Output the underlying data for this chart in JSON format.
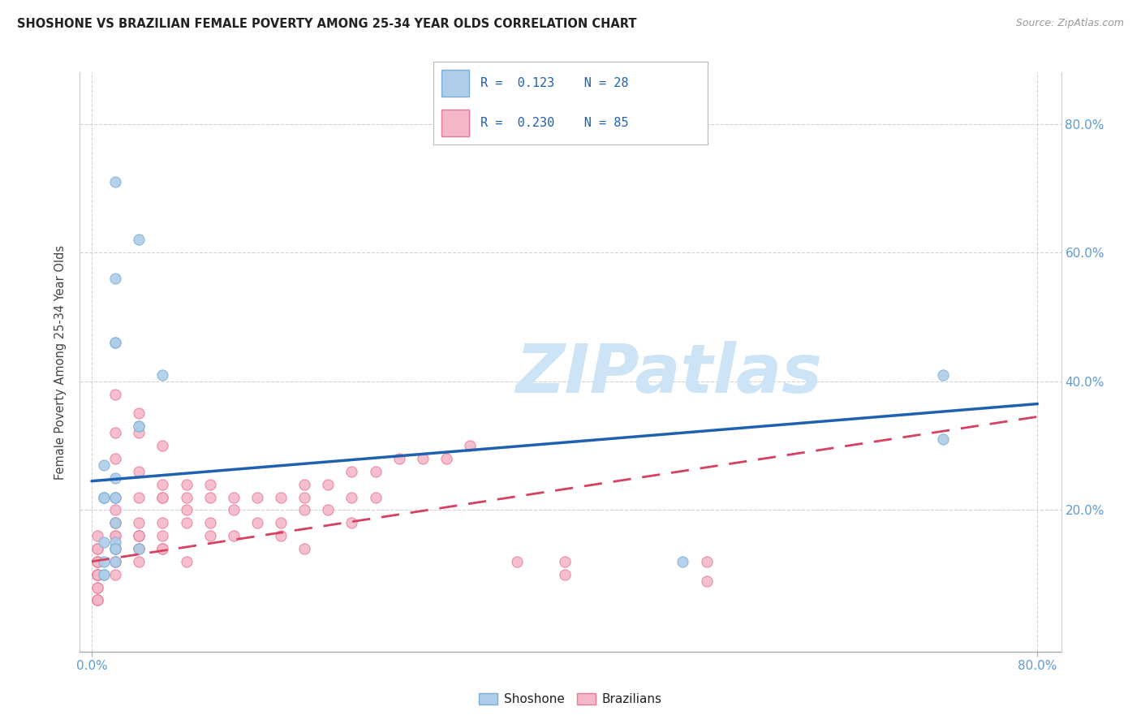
{
  "title": "SHOSHONE VS BRAZILIAN FEMALE POVERTY AMONG 25-34 YEAR OLDS CORRELATION CHART",
  "source": "Source: ZipAtlas.com",
  "ylabel": "Female Poverty Among 25-34 Year Olds",
  "xlim": [
    -0.01,
    0.82
  ],
  "ylim": [
    -0.02,
    0.88
  ],
  "xticks": [
    0.0,
    0.8
  ],
  "yticks": [
    0.2,
    0.4,
    0.6,
    0.8
  ],
  "xtick_labels": [
    "0.0%",
    "80.0%"
  ],
  "ytick_labels": [
    "20.0%",
    "40.0%",
    "60.0%",
    "80.0%"
  ],
  "shoshone_R": "0.123",
  "shoshone_N": "28",
  "brazilian_R": "0.230",
  "brazilian_N": "85",
  "shoshone_color": "#aecde8",
  "brazilian_color": "#f4b8c8",
  "shoshone_edge": "#7aaed6",
  "brazilian_edge": "#e87898",
  "trend_blue": "#2060b0",
  "trend_pink": "#d84060",
  "watermark_text": "ZIPatlas",
  "watermark_color": "#cce4f5",
  "legend_items": [
    {
      "color": "#aecde8",
      "edge": "#7aaed6",
      "R": "0.123",
      "N": "28"
    },
    {
      "color": "#f4b8c8",
      "edge": "#e87898",
      "R": "0.230",
      "N": "85"
    }
  ],
  "bottom_legend": [
    "Shoshone",
    "Brazilians"
  ],
  "shoshone_x": [
    0.02,
    0.02,
    0.04,
    0.02,
    0.02,
    0.04,
    0.04,
    0.06,
    0.01,
    0.01,
    0.01,
    0.01,
    0.02,
    0.02,
    0.02,
    0.02,
    0.01,
    0.01,
    0.02,
    0.04,
    0.02,
    0.02,
    0.01,
    0.01,
    0.72,
    0.72,
    0.5,
    0.02
  ],
  "shoshone_y": [
    0.71,
    0.56,
    0.62,
    0.46,
    0.46,
    0.33,
    0.33,
    0.41,
    0.27,
    0.22,
    0.22,
    0.22,
    0.22,
    0.22,
    0.18,
    0.15,
    0.15,
    0.12,
    0.12,
    0.14,
    0.14,
    0.14,
    0.1,
    0.1,
    0.41,
    0.31,
    0.12,
    0.25
  ],
  "brazilian_x": [
    0.005,
    0.005,
    0.005,
    0.005,
    0.005,
    0.005,
    0.005,
    0.005,
    0.005,
    0.005,
    0.005,
    0.005,
    0.005,
    0.005,
    0.005,
    0.02,
    0.02,
    0.02,
    0.02,
    0.02,
    0.02,
    0.02,
    0.02,
    0.02,
    0.02,
    0.02,
    0.02,
    0.02,
    0.02,
    0.04,
    0.04,
    0.04,
    0.04,
    0.04,
    0.04,
    0.04,
    0.04,
    0.04,
    0.04,
    0.04,
    0.06,
    0.06,
    0.06,
    0.06,
    0.06,
    0.06,
    0.06,
    0.06,
    0.08,
    0.08,
    0.08,
    0.08,
    0.08,
    0.1,
    0.1,
    0.1,
    0.1,
    0.12,
    0.12,
    0.12,
    0.14,
    0.14,
    0.16,
    0.16,
    0.16,
    0.18,
    0.18,
    0.18,
    0.18,
    0.2,
    0.2,
    0.22,
    0.22,
    0.22,
    0.24,
    0.24,
    0.26,
    0.28,
    0.3,
    0.32,
    0.36,
    0.4,
    0.4,
    0.52,
    0.52
  ],
  "brazilian_y": [
    0.16,
    0.14,
    0.14,
    0.12,
    0.12,
    0.12,
    0.1,
    0.1,
    0.1,
    0.1,
    0.08,
    0.08,
    0.06,
    0.06,
    0.06,
    0.38,
    0.32,
    0.28,
    0.22,
    0.2,
    0.18,
    0.18,
    0.16,
    0.16,
    0.14,
    0.14,
    0.12,
    0.12,
    0.1,
    0.35,
    0.32,
    0.26,
    0.22,
    0.18,
    0.16,
    0.16,
    0.16,
    0.14,
    0.14,
    0.12,
    0.3,
    0.24,
    0.22,
    0.22,
    0.18,
    0.16,
    0.14,
    0.14,
    0.24,
    0.22,
    0.2,
    0.18,
    0.12,
    0.24,
    0.22,
    0.18,
    0.16,
    0.22,
    0.2,
    0.16,
    0.22,
    0.18,
    0.22,
    0.18,
    0.16,
    0.24,
    0.22,
    0.2,
    0.14,
    0.24,
    0.2,
    0.26,
    0.22,
    0.18,
    0.26,
    0.22,
    0.28,
    0.28,
    0.28,
    0.3,
    0.12,
    0.12,
    0.1,
    0.12,
    0.09
  ],
  "sh_trend_start_y": 0.245,
  "sh_trend_end_y": 0.365,
  "br_trend_start_y": 0.12,
  "br_trend_end_y": 0.345
}
